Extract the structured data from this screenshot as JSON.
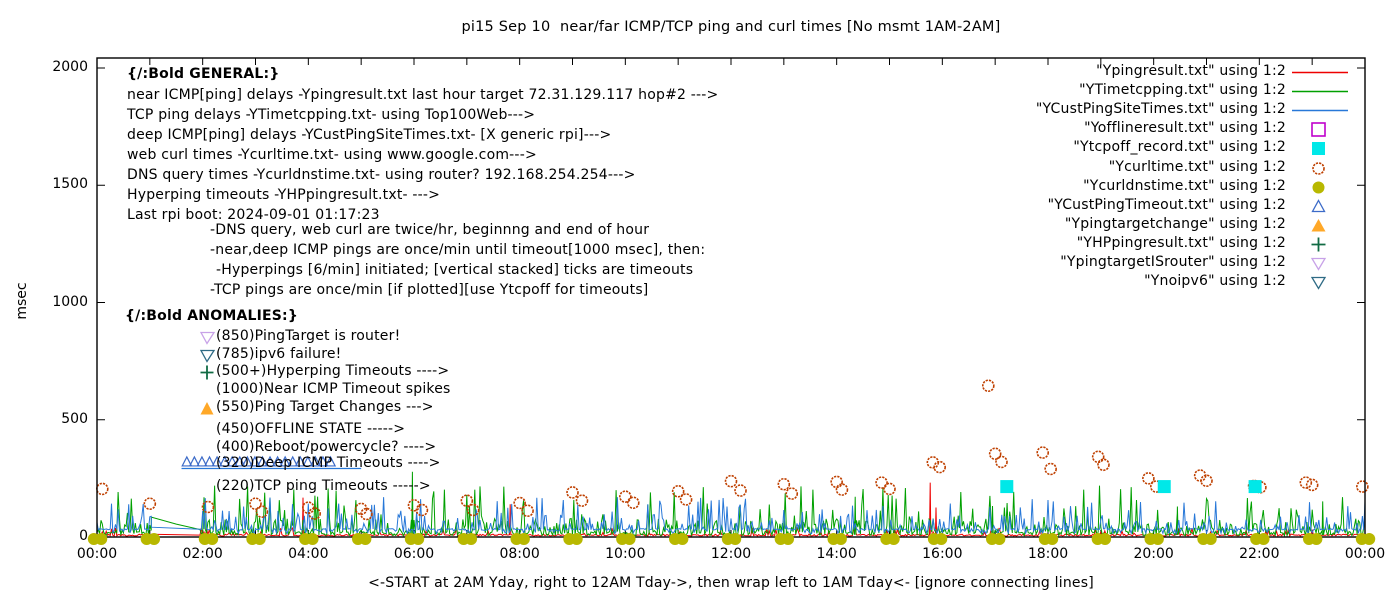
{
  "title": "pi15 Sep 10  near/far ICMP/TCP ping and curl times [No msmt 1AM-2AM]",
  "axes": {
    "y_label": "msec",
    "y_ticks": [
      0,
      500,
      1000,
      1500,
      2000
    ],
    "x_tick_labels": [
      "00:00",
      "02:00",
      "04:00",
      "06:00",
      "08:00",
      "10:00",
      "12:00",
      "14:00",
      "16:00",
      "18:00",
      "20:00",
      "22:00",
      "00:00"
    ],
    "x_caption": "<-START at 2AM Yday, right to 12AM Tday->, then wrap left to 1AM Tday<- [ignore connecting lines]"
  },
  "legend": [
    {
      "label": "\"Ypingresult.txt\" using 1:2",
      "swatch": "line",
      "color": "#ee0000"
    },
    {
      "label": "\"YTimetcpping.txt\" using 1:2",
      "swatch": "line",
      "color": "#00a000"
    },
    {
      "label": "\"YCustPingSiteTimes.txt\" using 1:2",
      "swatch": "line",
      "color": "#2878d8"
    },
    {
      "label": "\"Yofflineresult.txt\" using 1:2",
      "swatch": "square-outline",
      "color": "#c000cc"
    },
    {
      "label": "\"Ytcpoff_record.txt\" using 1:2",
      "swatch": "square-fill",
      "color": "#00e8e8"
    },
    {
      "label": "\"Ycurltime.txt\" using 1:2",
      "swatch": "circle-outline",
      "color": "#bf4000"
    },
    {
      "label": "\"Ycurldnstime.txt\" using 1:2",
      "swatch": "dot",
      "color": "#b8b800"
    },
    {
      "label": "\"YCustPingTimeout.txt\" using 1:2",
      "swatch": "tri-up-outline",
      "color": "#3c6bc8"
    },
    {
      "label": "\"Ypingtargetchange\" using 1:2",
      "swatch": "tri-up-fill",
      "color": "#ffa828"
    },
    {
      "label": "\"YHPpingresult.txt\" using 1:2",
      "swatch": "plus",
      "color": "#116b44"
    },
    {
      "label": "\"YpingtargetISrouter\" using 1:2",
      "swatch": "tri-down-outline",
      "color": "#c8a2e8"
    },
    {
      "label": "\"Ynoipv6\" using 1:2",
      "swatch": "tri-down-outline",
      "color": "#2f6b85"
    }
  ],
  "general": {
    "header": "{/:Bold GENERAL:}",
    "lines": [
      "near ICMP[ping] delays -Ypingresult.txt last hour target 72.31.129.117 hop#2 --->",
      "TCP ping delays -YTimetcpping.txt- using Top100Web--->",
      "deep ICMP[ping] delays -YCustPingSiteTimes.txt- [X generic rpi]--->",
      "web curl times -Ycurltime.txt- using www.google.com--->",
      "DNS query times -Ycurldnstime.txt- using router? 192.168.254.254--->",
      "Hyperping timeouts -YHPpingresult.txt- --->",
      "Last rpi boot: 2024-09-01 01:17:23"
    ],
    "notes": [
      "-DNS query, web curl are twice/hr, beginnng and end of hour",
      "-near,deep ICMP pings are once/min until timeout[1000 msec], then:",
      "-Hyperpings [6/min] initiated; [vertical stacked] ticks are timeouts",
      "-TCP pings are once/min [if plotted][use Ytcpoff for timeouts]"
    ]
  },
  "anomalies": {
    "header": "{/:Bold ANOMALIES:}",
    "rows": [
      {
        "glyph": "tri-down-outline",
        "color": "#c8a2e8",
        "text": "(850)PingTarget is router!"
      },
      {
        "glyph": "tri-down-outline",
        "color": "#2f6b85",
        "text": "(785)ipv6 failure!"
      },
      {
        "glyph": "plus",
        "color": "#116b44",
        "text": "(500+)Hyperping Timeouts ---->"
      },
      {
        "glyph": "none",
        "color": "",
        "text": "(1000)Near ICMP Timeout spikes"
      },
      {
        "glyph": "tri-up-fill",
        "color": "#ffa828",
        "text": "(550)Ping Target Changes --->"
      },
      {
        "glyph": "square-outline",
        "color": "#c000cc",
        "text": "(450)OFFLINE STATE ----->"
      },
      {
        "glyph": "none",
        "color": "",
        "text": "(400)Reboot/powercycle? ---->"
      },
      {
        "glyph": "none",
        "color": "",
        "text": "(320)Deep ICMP Timeouts ---->"
      },
      {
        "glyph": "square-fill",
        "color": "#00e8e8",
        "text": "(220)TCP ping Timeouts ----->"
      }
    ]
  },
  "chart_data": {
    "type": "line",
    "title": "pi15 Sep 10  near/far ICMP/TCP ping and curl times [No msmt 1AM-2AM]",
    "xlabel": "<-START at 2AM Yday, right to 12AM Tday->, then wrap left to 1AM Tday<- [ignore connecting lines]",
    "ylabel": "msec",
    "ylim": [
      0,
      2000
    ],
    "x_range_hours": [
      0,
      24
    ],
    "x_tick_every_hours": 2,
    "grid": false,
    "legend_position": "top-right",
    "no_measurement_window_hours": [
      1,
      2
    ],
    "series": [
      {
        "name": "Ypingresult.txt (near ICMP ping, red line)",
        "style": "noisy-line",
        "color": "#ee0000",
        "noise": {
          "seed": 11,
          "step_hours": 0.025,
          "bands": [
            [
              0.92,
              4,
              8
            ],
            [
              1.0,
              12,
              28
            ]
          ]
        },
        "gap_segment": [
          [
            1.03,
            12
          ],
          [
            1.95,
            8
          ]
        ],
        "spikes": [
          [
            3.9,
            168
          ],
          [
            7.82,
            140
          ],
          [
            15.77,
            232
          ],
          [
            15.88,
            126
          ]
        ]
      },
      {
        "name": "YTimetcpping.txt (TCP ping, green line)",
        "style": "noisy-line",
        "color": "#00a000",
        "noise": {
          "seed": 7,
          "step_hours": 0.025,
          "bands": [
            [
              0.55,
              6,
              18
            ],
            [
              0.9,
              24,
              55
            ],
            [
              1.0,
              80,
              140
            ]
          ]
        },
        "gap_segment": [
          [
            1.03,
            85
          ],
          [
            1.5,
            55
          ],
          [
            1.95,
            32
          ]
        ],
        "spikes": [
          [
            5.97,
            278
          ],
          [
            14.35,
            172
          ],
          [
            16.95,
            132
          ],
          [
            20.45,
            130
          ],
          [
            23.2,
            152
          ]
        ]
      },
      {
        "name": "YCustPingSiteTimes.txt (deep ICMP ping, blue line)",
        "style": "noisy-line",
        "color": "#2878d8",
        "noise": {
          "seed": 3,
          "step_hours": 0.025,
          "bands": [
            [
              0.5,
              30,
              6
            ],
            [
              0.75,
              14,
              20
            ],
            [
              0.93,
              40,
              60
            ],
            [
              1.0,
              100,
              70
            ]
          ]
        },
        "gap_segment": [
          [
            1.03,
            42
          ],
          [
            1.95,
            33
          ]
        ],
        "spikes": [],
        "plateau": {
          "t0": 1.6,
          "t1": 5.0,
          "msec": 292
        }
      },
      {
        "name": "Ycurltime.txt (web curl times, open circles)",
        "style": "scatter-circle-outline",
        "color": "#bf4000",
        "points": [
          [
            0.1,
            205
          ],
          [
            1.0,
            142
          ],
          [
            2.1,
            128
          ],
          [
            3.0,
            142
          ],
          [
            3.12,
            108
          ],
          [
            4.0,
            125
          ],
          [
            4.12,
            100
          ],
          [
            5.0,
            120
          ],
          [
            5.1,
            98
          ],
          [
            6.0,
            135
          ],
          [
            6.15,
            115
          ],
          [
            7.0,
            155
          ],
          [
            7.12,
            115
          ],
          [
            8.0,
            145
          ],
          [
            8.15,
            112
          ],
          [
            9.0,
            190
          ],
          [
            9.18,
            155
          ],
          [
            10.0,
            172
          ],
          [
            10.15,
            146
          ],
          [
            11.0,
            195
          ],
          [
            11.15,
            160
          ],
          [
            12.0,
            238
          ],
          [
            12.18,
            198
          ],
          [
            13.0,
            225
          ],
          [
            13.15,
            185
          ],
          [
            14.0,
            235
          ],
          [
            14.1,
            202
          ],
          [
            14.85,
            232
          ],
          [
            15.0,
            205
          ],
          [
            15.82,
            318
          ],
          [
            15.95,
            298
          ],
          [
            16.87,
            645
          ],
          [
            17.0,
            355
          ],
          [
            17.12,
            320
          ],
          [
            17.9,
            360
          ],
          [
            18.05,
            290
          ],
          [
            18.95,
            342
          ],
          [
            19.05,
            308
          ],
          [
            19.9,
            250
          ],
          [
            20.05,
            215
          ],
          [
            20.88,
            262
          ],
          [
            21.0,
            240
          ],
          [
            21.9,
            218
          ],
          [
            22.02,
            212
          ],
          [
            22.88,
            232
          ],
          [
            23.0,
            222
          ],
          [
            23.95,
            215
          ]
        ]
      },
      {
        "name": "Ycurldnstime.txt (DNS query times, filled dots at baseline)",
        "style": "scatter-dot-baseline",
        "color": "#b8b800",
        "hours": [
          0,
          1,
          2.1,
          3,
          4,
          5,
          6,
          7,
          8,
          9,
          10,
          11,
          12,
          13,
          14,
          15,
          15.9,
          17,
          18,
          19,
          20,
          21,
          22,
          23,
          24
        ],
        "msec": 0
      },
      {
        "name": "Ytcpoff_record.txt (TCP ping timeouts, cyan squares)",
        "style": "scatter-square-fill",
        "color": "#00e8e8",
        "points": [
          [
            17.22,
            215
          ],
          [
            20.2,
            215
          ],
          [
            21.92,
            215
          ]
        ]
      },
      {
        "name": "YCustPingTimeout.txt (deep ICMP timeouts, open triangles)",
        "style": "scatter-tri-up-outline",
        "color": "#3c6bc8",
        "msec": 320,
        "t_start": 1.7,
        "t_end": 4.42,
        "count": 20
      }
    ]
  }
}
